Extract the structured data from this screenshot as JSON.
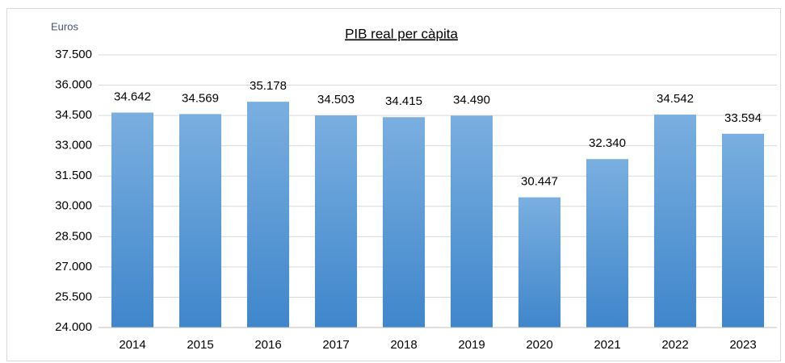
{
  "chart_data": {
    "type": "bar",
    "title": "PIB real per càpita",
    "y_label": "Euros",
    "categories": [
      "2014",
      "2015",
      "2016",
      "2017",
      "2018",
      "2019",
      "2020",
      "2021",
      "2022",
      "2023"
    ],
    "values": [
      34642,
      34569,
      35178,
      34503,
      34415,
      34490,
      30447,
      32340,
      34542,
      33594
    ],
    "value_labels": [
      "34.642",
      "34.569",
      "35.178",
      "34.503",
      "34.415",
      "34.490",
      "30.447",
      "32.340",
      "34.542",
      "33.594"
    ],
    "color": "#5b9bd5",
    "ylim": [
      24000,
      37500
    ],
    "yticks": [
      {
        "value": 24000,
        "label": "24.000"
      },
      {
        "value": 25500,
        "label": "25.500"
      },
      {
        "value": 27000,
        "label": "27.000"
      },
      {
        "value": 28500,
        "label": "28.500"
      },
      {
        "value": 30000,
        "label": "30.000"
      },
      {
        "value": 31500,
        "label": "31.500"
      },
      {
        "value": 33000,
        "label": "33.000"
      },
      {
        "value": 34500,
        "label": "34.500"
      },
      {
        "value": 36000,
        "label": "36.000"
      },
      {
        "value": 37500,
        "label": "37.500"
      }
    ],
    "grid": true
  }
}
